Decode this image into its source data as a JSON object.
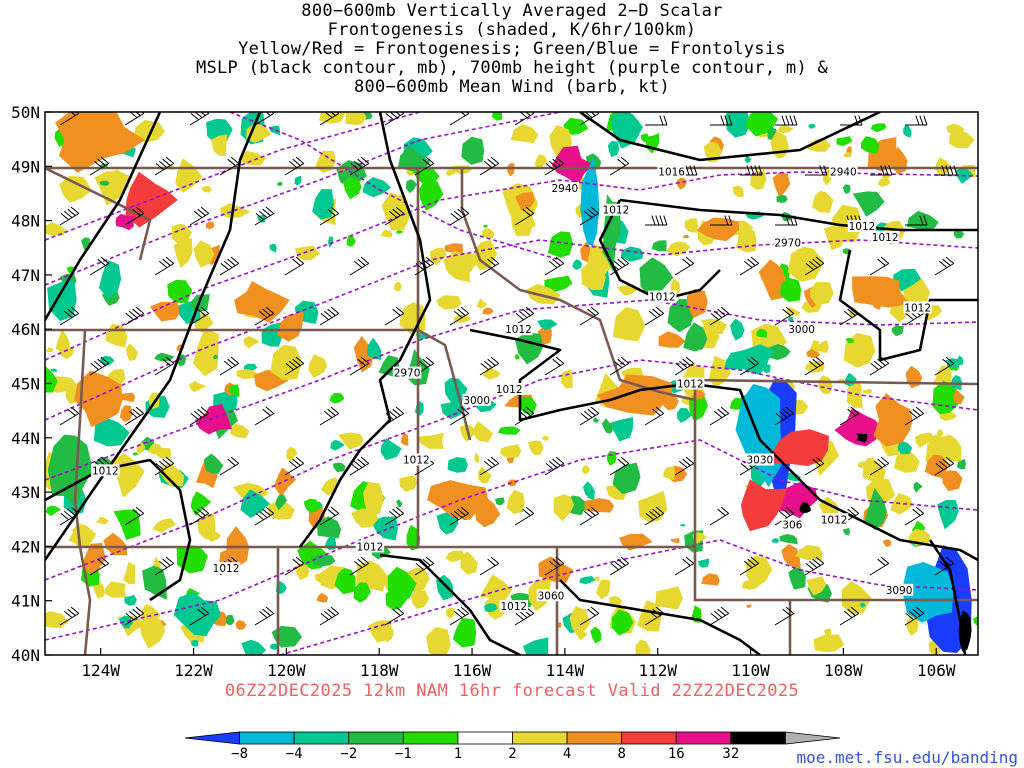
{
  "title_lines": [
    "800−600mb Vertically Averaged 2−D Scalar",
    "Frontogenesis (shaded, K/6hr/100km)",
    "Yellow/Red = Frontogenesis;  Green/Blue = Frontolysis",
    "MSLP (black contour, mb), 700mb height (purple contour, m) &",
    "800−600mb Mean Wind (barb, kt)"
  ],
  "map": {
    "lon_range": [
      -125.2,
      -105.1
    ],
    "lat_range": [
      40,
      50
    ],
    "lat_labels": [
      "40N",
      "41N",
      "42N",
      "43N",
      "44N",
      "45N",
      "46N",
      "47N",
      "48N",
      "49N",
      "50N"
    ],
    "lon_labels": [
      {
        "lon": -124,
        "text": "124W"
      },
      {
        "lon": -122,
        "text": "122W"
      },
      {
        "lon": -120,
        "text": "120W"
      },
      {
        "lon": -118,
        "text": "118W"
      },
      {
        "lon": -116,
        "text": "116W"
      },
      {
        "lon": -114,
        "text": "114W"
      },
      {
        "lon": -112,
        "text": "112W"
      },
      {
        "lon": -110,
        "text": "110W"
      },
      {
        "lon": -108,
        "text": "108W"
      },
      {
        "lon": -106,
        "text": "106W"
      }
    ],
    "mslp_labels": [
      {
        "text": "1016",
        "lon": -111.7,
        "lat": 48.9
      },
      {
        "text": "1012",
        "lon": -112.9,
        "lat": 48.2
      },
      {
        "text": "1012",
        "lon": -107.6,
        "lat": 47.9
      },
      {
        "text": "1012",
        "lon": -107.1,
        "lat": 47.7
      },
      {
        "text": "1012",
        "lon": -111.9,
        "lat": 46.6
      },
      {
        "text": "1012",
        "lon": -106.4,
        "lat": 46.4
      },
      {
        "text": "1012",
        "lon": -115.0,
        "lat": 46.0
      },
      {
        "text": "1012",
        "lon": -111.3,
        "lat": 45.0
      },
      {
        "text": "1012",
        "lon": -115.2,
        "lat": 44.9
      },
      {
        "text": "1012",
        "lon": -117.2,
        "lat": 43.6
      },
      {
        "text": "1012",
        "lon": -123.9,
        "lat": 43.4
      },
      {
        "text": "1012",
        "lon": -108.2,
        "lat": 42.5
      },
      {
        "text": "1012",
        "lon": -118.2,
        "lat": 42.0
      },
      {
        "text": "1012",
        "lon": -121.3,
        "lat": 41.6
      },
      {
        "text": "1012",
        "lon": -115.1,
        "lat": 40.9
      }
    ],
    "height_labels": [
      {
        "text": "2940",
        "lon": -108.0,
        "lat": 48.9
      },
      {
        "text": "2940",
        "lon": -114.0,
        "lat": 48.6
      },
      {
        "text": "2970",
        "lon": -109.2,
        "lat": 47.6
      },
      {
        "text": "2970",
        "lon": -117.4,
        "lat": 45.2
      },
      {
        "text": "3000",
        "lon": -108.9,
        "lat": 46.0
      },
      {
        "text": "3000",
        "lon": -115.9,
        "lat": 44.7
      },
      {
        "text": "3030",
        "lon": -109.8,
        "lat": 43.6
      },
      {
        "text": "306",
        "lon": -109.1,
        "lat": 42.4
      },
      {
        "text": "3060",
        "lon": -114.3,
        "lat": 41.1
      },
      {
        "text": "3090",
        "lon": -106.8,
        "lat": 41.2
      }
    ],
    "colors": {
      "mslp": "#000000",
      "height": "#9a10cc",
      "border": "#7a5a50",
      "barb": "#000000"
    }
  },
  "valid_text": "06Z22DEC2025 12km NAM 16hr forecast Valid 22Z22DEC2025",
  "colorbar": {
    "labels": [
      "−8",
      "−4",
      "−2",
      "−1",
      "1",
      "2",
      "4",
      "8",
      "16",
      "32"
    ],
    "colors": [
      "#1a3cff",
      "#00b8d8",
      "#00c890",
      "#22bb44",
      "#22dd00",
      "#ffffff",
      "#e6d830",
      "#f09020",
      "#f53c3c",
      "#e8108a",
      "#000000",
      "#b0b0b0"
    ]
  },
  "credit": "moe.met.fsu.edu/banding"
}
